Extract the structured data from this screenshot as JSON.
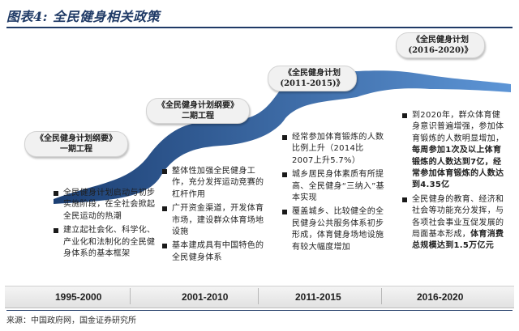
{
  "title": "图表4: 全民健身相关政策",
  "stages": [
    {
      "bubble_lines": [
        "《全民健身计划纲要》",
        "一期工程"
      ],
      "year": "1995-2000",
      "items": [
        [
          {
            "t": "全民健身计划启动与初步实施阶段，在全社会掀起全民运动的热潮"
          }
        ],
        [
          {
            "t": "建立起社会化、科学化、产业化和法制化的全民健身体系的基本框架"
          }
        ]
      ]
    },
    {
      "bubble_lines": [
        "《全民健身计划纲要》",
        "二期工程"
      ],
      "year": "2001-2010",
      "items": [
        [
          {
            "t": "整体性加强全民健身工作，充分发挥运动竞赛的杠杆作用"
          }
        ],
        [
          {
            "t": "广开资金渠道，开发体育市场，建设群众体育场地设施"
          }
        ],
        [
          {
            "t": "基本建成具有中国特色的全民健身体系"
          }
        ]
      ]
    },
    {
      "bubble_lines": [
        "《全民健身计划",
        "(2011-2015)》"
      ],
      "year": "2011-2015",
      "items": [
        [
          {
            "t": "经常参加体育锻炼的人数比例上升（2014比2007上升5.7%）"
          }
        ],
        [
          {
            "t": "城乡居民身体素质有所提高、全民健身“三纳入”基本实现"
          }
        ],
        [
          {
            "t": "覆盖城乡、比较健全的全民健身公共服务体系初步形成，体育健身场地设施有较大幅度增加"
          }
        ]
      ]
    },
    {
      "bubble_lines": [
        "《全民健身计划",
        "(2016-2020)》"
      ],
      "year": "2016-2020",
      "items": [
        [
          {
            "t": "到2020年，群众体育健身意识普遍增强，参加体育锻炼的人数明显增加，"
          },
          {
            "t": "每周参加1次及以上体育锻炼的人数达到7亿，经常参加体育锻炼的人数达到4.35亿",
            "b": true
          }
        ],
        [
          {
            "t": "全民健身的教育、经济和社会等功能充分发挥，与各项社会事业互促发展的局面基本形成，"
          },
          {
            "t": "体育消费总规模达到1.5万亿元",
            "b": true
          }
        ]
      ]
    }
  ],
  "source": "来源：中国政府网，国金证券研究所"
}
